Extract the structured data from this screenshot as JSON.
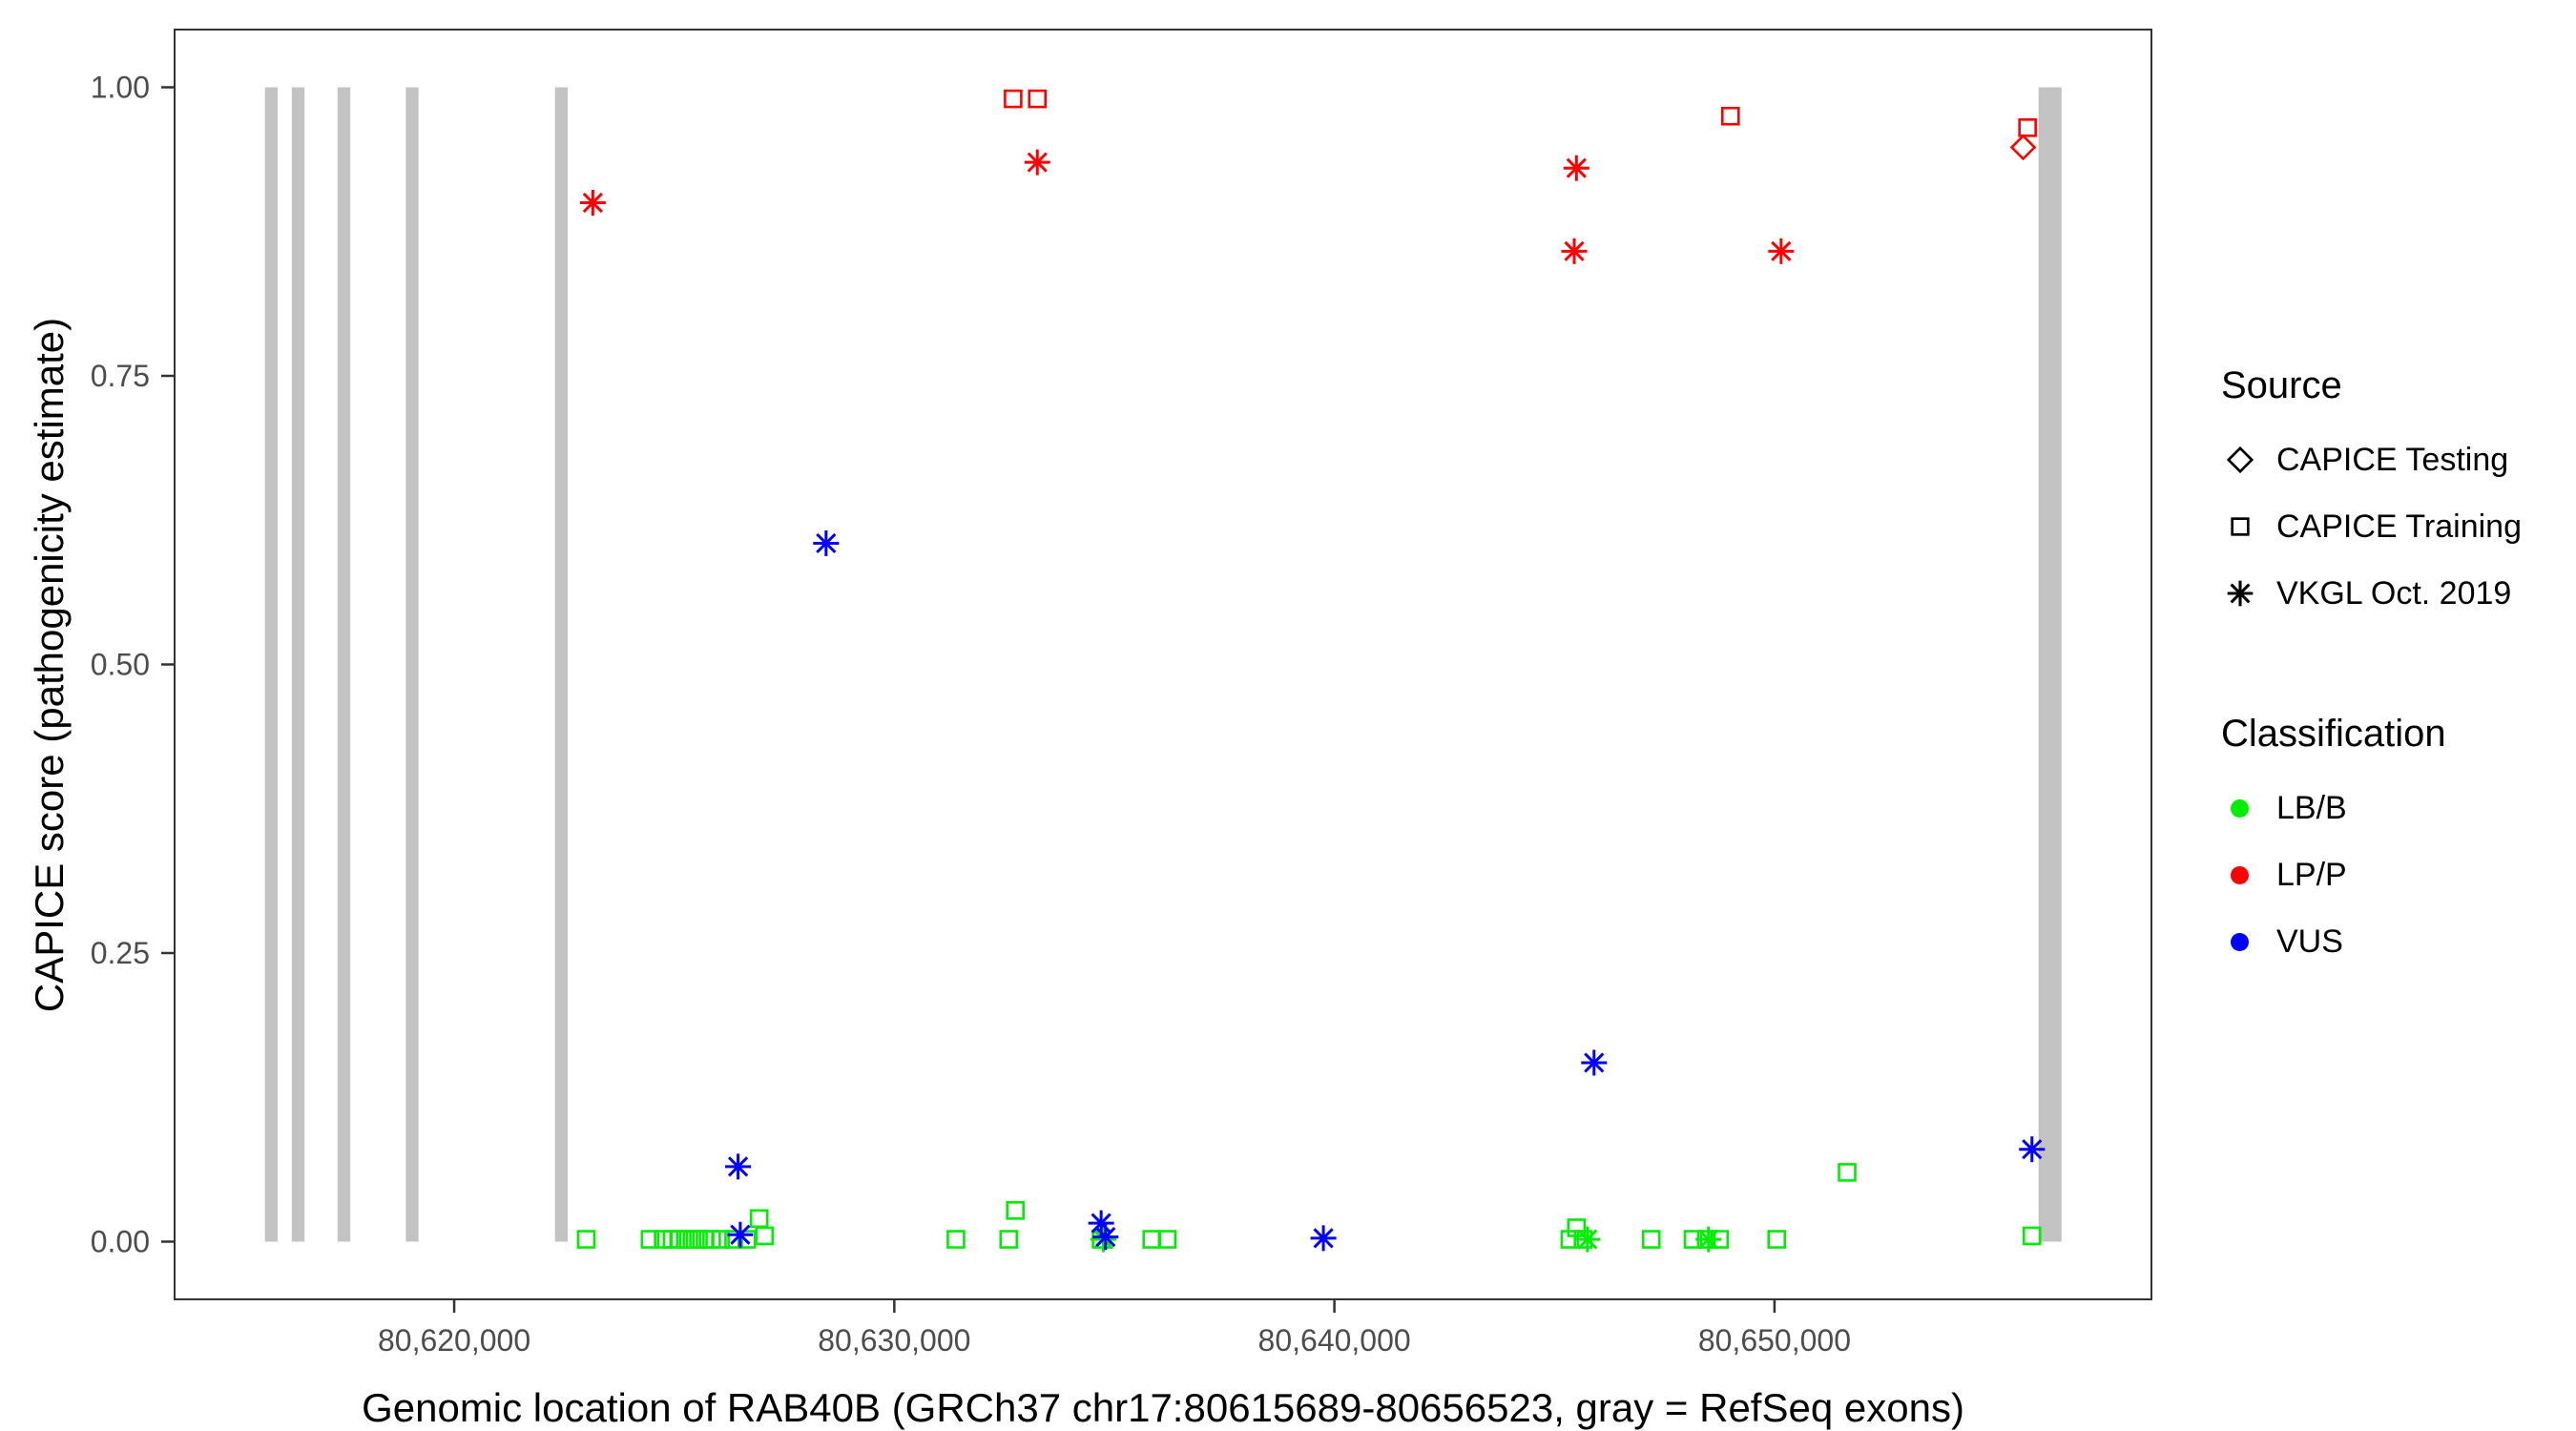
{
  "chart_data": {
    "type": "scatter",
    "title": "",
    "xlabel": "Genomic location of RAB40B (GRCh37 chr17:80615689-80656523, gray = RefSeq exons)",
    "ylabel": "CAPICE score (pathogenicity estimate)",
    "xlim": [
      80613647,
      80658565
    ],
    "ylim": [
      -0.05,
      1.05
    ],
    "grid": false,
    "legend_position": "right",
    "axis_color": "#333333",
    "tick_label_color": "#4D4D4D",
    "exon_color": "#C3C3C3",
    "colors": {
      "LB/B": "#00EE00",
      "LP/P": "#FF0000",
      "VUS": "#0000FF"
    },
    "shape_by_source": {
      "CAPICE Testing": "diamond",
      "CAPICE Training": "square",
      "VKGL Oct. 2019": "asterisk"
    },
    "x_ticks": [
      {
        "value": 80620000,
        "label": "80,620,000"
      },
      {
        "value": 80630000,
        "label": "80,630,000"
      },
      {
        "value": 80640000,
        "label": "80,640,000"
      },
      {
        "value": 80650000,
        "label": "80,650,000"
      }
    ],
    "y_ticks": [
      {
        "value": 0.0,
        "label": "0.00"
      },
      {
        "value": 0.25,
        "label": "0.25"
      },
      {
        "value": 0.5,
        "label": "0.50"
      },
      {
        "value": 0.75,
        "label": "0.75"
      },
      {
        "value": 1.0,
        "label": "1.00"
      }
    ],
    "exons": [
      [
        80615700,
        80615990
      ],
      [
        80616310,
        80616600
      ],
      [
        80617350,
        80617640
      ],
      [
        80618900,
        80619190
      ],
      [
        80622290,
        80622580
      ],
      [
        80656000,
        80656523
      ]
    ],
    "points": [
      {
        "x": 80623000,
        "y": 0.002,
        "classification": "LB/B",
        "source": "CAPICE Training"
      },
      {
        "x": 80624450,
        "y": 0.002,
        "classification": "LB/B",
        "source": "CAPICE Training"
      },
      {
        "x": 80624750,
        "y": 0.002,
        "classification": "LB/B",
        "source": "CAPICE Training"
      },
      {
        "x": 80624950,
        "y": 0.002,
        "classification": "LB/B",
        "source": "CAPICE Training"
      },
      {
        "x": 80625100,
        "y": 0.002,
        "classification": "LB/B",
        "source": "CAPICE Training"
      },
      {
        "x": 80625250,
        "y": 0.002,
        "classification": "LB/B",
        "source": "CAPICE Training"
      },
      {
        "x": 80625400,
        "y": 0.002,
        "classification": "LB/B",
        "source": "CAPICE Training"
      },
      {
        "x": 80625550,
        "y": 0.002,
        "classification": "LB/B",
        "source": "CAPICE Training"
      },
      {
        "x": 80625700,
        "y": 0.002,
        "classification": "LB/B",
        "source": "CAPICE Training"
      },
      {
        "x": 80625850,
        "y": 0.002,
        "classification": "LB/B",
        "source": "CAPICE Training"
      },
      {
        "x": 80626050,
        "y": 0.002,
        "classification": "LB/B",
        "source": "CAPICE Training"
      },
      {
        "x": 80626350,
        "y": 0.002,
        "classification": "LB/B",
        "source": "CAPICE Training"
      },
      {
        "x": 80626650,
        "y": 0.002,
        "classification": "LB/B",
        "source": "CAPICE Training"
      },
      {
        "x": 80626930,
        "y": 0.02,
        "classification": "LB/B",
        "source": "CAPICE Training"
      },
      {
        "x": 80627050,
        "y": 0.005,
        "classification": "LB/B",
        "source": "CAPICE Training"
      },
      {
        "x": 80631400,
        "y": 0.002,
        "classification": "LB/B",
        "source": "CAPICE Training"
      },
      {
        "x": 80632600,
        "y": 0.002,
        "classification": "LB/B",
        "source": "CAPICE Training"
      },
      {
        "x": 80632750,
        "y": 0.027,
        "classification": "LB/B",
        "source": "CAPICE Training"
      },
      {
        "x": 80634700,
        "y": 0.002,
        "classification": "LB/B",
        "source": "CAPICE Training"
      },
      {
        "x": 80635850,
        "y": 0.002,
        "classification": "LB/B",
        "source": "CAPICE Training"
      },
      {
        "x": 80636200,
        "y": 0.002,
        "classification": "LB/B",
        "source": "CAPICE Training"
      },
      {
        "x": 80645350,
        "y": 0.002,
        "classification": "LB/B",
        "source": "CAPICE Training"
      },
      {
        "x": 80645500,
        "y": 0.012,
        "classification": "LB/B",
        "source": "CAPICE Training"
      },
      {
        "x": 80645650,
        "y": 0.002,
        "classification": "LB/B",
        "source": "CAPICE Training"
      },
      {
        "x": 80647200,
        "y": 0.002,
        "classification": "LB/B",
        "source": "CAPICE Training"
      },
      {
        "x": 80648150,
        "y": 0.002,
        "classification": "LB/B",
        "source": "CAPICE Training"
      },
      {
        "x": 80648450,
        "y": 0.002,
        "classification": "LB/B",
        "source": "CAPICE Training"
      },
      {
        "x": 80648750,
        "y": 0.002,
        "classification": "LB/B",
        "source": "CAPICE Training"
      },
      {
        "x": 80650050,
        "y": 0.002,
        "classification": "LB/B",
        "source": "CAPICE Training"
      },
      {
        "x": 80651650,
        "y": 0.06,
        "classification": "LB/B",
        "source": "CAPICE Training"
      },
      {
        "x": 80655850,
        "y": 0.005,
        "classification": "LB/B",
        "source": "CAPICE Training"
      },
      {
        "x": 80634750,
        "y": 0.002,
        "classification": "LB/B",
        "source": "VKGL Oct. 2019"
      },
      {
        "x": 80645750,
        "y": 0.002,
        "classification": "LB/B",
        "source": "VKGL Oct. 2019"
      },
      {
        "x": 80648500,
        "y": 0.002,
        "classification": "LB/B",
        "source": "VKGL Oct. 2019"
      },
      {
        "x": 80628450,
        "y": 0.605,
        "classification": "VUS",
        "source": "VKGL Oct. 2019"
      },
      {
        "x": 80626450,
        "y": 0.065,
        "classification": "VUS",
        "source": "VKGL Oct. 2019"
      },
      {
        "x": 80626500,
        "y": 0.006,
        "classification": "VUS",
        "source": "VKGL Oct. 2019"
      },
      {
        "x": 80634700,
        "y": 0.016,
        "classification": "VUS",
        "source": "VKGL Oct. 2019"
      },
      {
        "x": 80634800,
        "y": 0.004,
        "classification": "VUS",
        "source": "VKGL Oct. 2019"
      },
      {
        "x": 80639750,
        "y": 0.003,
        "classification": "VUS",
        "source": "VKGL Oct. 2019"
      },
      {
        "x": 80645900,
        "y": 0.155,
        "classification": "VUS",
        "source": "VKGL Oct. 2019"
      },
      {
        "x": 80655850,
        "y": 0.08,
        "classification": "VUS",
        "source": "VKGL Oct. 2019"
      },
      {
        "x": 80623150,
        "y": 0.9,
        "classification": "LP/P",
        "source": "VKGL Oct. 2019"
      },
      {
        "x": 80632700,
        "y": 0.99,
        "classification": "LP/P",
        "source": "CAPICE Training"
      },
      {
        "x": 80633250,
        "y": 0.99,
        "classification": "LP/P",
        "source": "CAPICE Training"
      },
      {
        "x": 80633250,
        "y": 0.935,
        "classification": "LP/P",
        "source": "VKGL Oct. 2019"
      },
      {
        "x": 80645500,
        "y": 0.93,
        "classification": "LP/P",
        "source": "VKGL Oct. 2019"
      },
      {
        "x": 80645450,
        "y": 0.858,
        "classification": "LP/P",
        "source": "VKGL Oct. 2019"
      },
      {
        "x": 80649000,
        "y": 0.975,
        "classification": "LP/P",
        "source": "CAPICE Training"
      },
      {
        "x": 80650150,
        "y": 0.858,
        "classification": "LP/P",
        "source": "VKGL Oct. 2019"
      },
      {
        "x": 80655750,
        "y": 0.965,
        "classification": "LP/P",
        "source": "CAPICE Training"
      },
      {
        "x": 80655650,
        "y": 0.948,
        "classification": "LP/P",
        "source": "CAPICE Testing"
      }
    ]
  },
  "legend": {
    "source": {
      "title": "Source",
      "items": [
        {
          "shape": "diamond",
          "label": "CAPICE Testing"
        },
        {
          "shape": "square",
          "label": "CAPICE Training"
        },
        {
          "shape": "asterisk",
          "label": "VKGL Oct. 2019"
        }
      ]
    },
    "classification": {
      "title": "Classification",
      "items": [
        {
          "color": "#00EE00",
          "label": "LB/B"
        },
        {
          "color": "#FF0000",
          "label": "LP/P"
        },
        {
          "color": "#0000FF",
          "label": "VUS"
        }
      ]
    }
  }
}
